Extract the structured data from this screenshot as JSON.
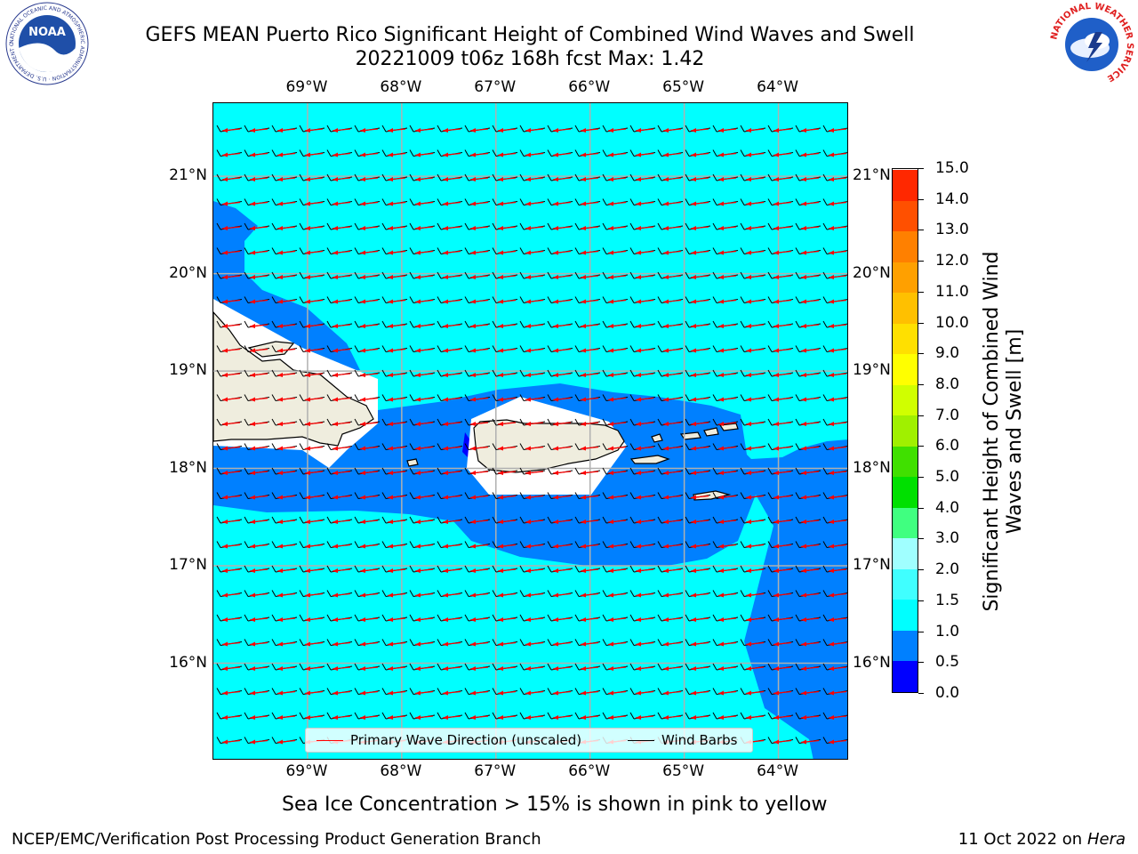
{
  "title": {
    "line1": "GEFS MEAN Puerto Rico Significant Height of Combined Wind Waves and Swell",
    "line2": "20221009 t06z 168h fcst   Max: 1.42"
  },
  "logos": {
    "noaa": {
      "text": "NOAA",
      "ring": "NATIONAL OCEANIC AND ATMOSPHERIC ADMINISTRATION · U.S. DEPARTMENT OF COMMERCE"
    },
    "nws": {
      "ring": "NATIONAL WEATHER SERVICE"
    }
  },
  "map": {
    "lon_labels": [
      "69°W",
      "68°W",
      "67°W",
      "66°W",
      "65°W",
      "64°W"
    ],
    "lat_labels": [
      "21°N",
      "20°N",
      "19°N",
      "18°N",
      "17°N",
      "16°N"
    ],
    "lon_range": [
      -70.0,
      -63.25
    ],
    "lat_range": [
      15.0,
      21.75
    ],
    "land_color": "#efedde",
    "coast_color": "#000000",
    "grid_color": "#b0b0b0"
  },
  "legend": {
    "items": [
      {
        "label": "Primary Wave Direction (unscaled)",
        "color": "#ff0000"
      },
      {
        "label": "Wind Barbs",
        "color": "#000000"
      }
    ]
  },
  "colorbar": {
    "label": "Significant Height of Combined Wind Waves and Swell [m]",
    "ticks": [
      "0.0",
      "0.5",
      "1.0",
      "1.5",
      "2.0",
      "3.0",
      "4.0",
      "5.0",
      "6.0",
      "7.0",
      "8.0",
      "9.0",
      "10.0",
      "11.0",
      "12.0",
      "13.0",
      "14.0",
      "15.0"
    ],
    "colors": [
      "#0000ff",
      "#0080ff",
      "#00ffff",
      "#40ffff",
      "#a0ffff",
      "#40ff80",
      "#00e000",
      "#40e000",
      "#a0f000",
      "#d0ff00",
      "#ffff00",
      "#ffe000",
      "#ffc000",
      "#ffa000",
      "#ff8000",
      "#ff5000",
      "#ff2800"
    ]
  },
  "notes": {
    "ice": "Sea Ice Concentration > 15% is shown in pink to yellow",
    "footer_left": "NCEP/EMC/Verification Post Processing Product Generation Branch",
    "footer_date": "11 Oct 2022 on",
    "footer_machine": "Hera"
  }
}
